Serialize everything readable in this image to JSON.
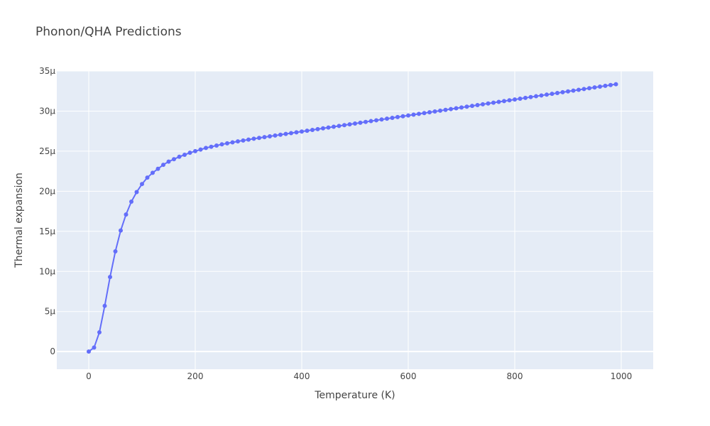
{
  "chart_data": {
    "type": "line",
    "title": "Phonon/QHA Predictions",
    "xlabel": "Temperature (K)",
    "ylabel": "Thermal expansion",
    "xlim": [
      -60,
      1060
    ],
    "ylim": [
      -2.2,
      35
    ],
    "x_ticks": [
      0,
      200,
      400,
      600,
      800,
      1000
    ],
    "x_tick_labels": [
      "0",
      "200",
      "400",
      "600",
      "800",
      "1000"
    ],
    "y_ticks": [
      0,
      5,
      10,
      15,
      20,
      25,
      30,
      35
    ],
    "y_tick_labels": [
      "0",
      "5μ",
      "10μ",
      "15μ",
      "20μ",
      "25μ",
      "30μ",
      "35μ"
    ],
    "y_unit": "μ (1e-6 per K)",
    "grid": true,
    "legend": "none",
    "colors": {
      "line": "#636efa",
      "plot_bg": "#e5ecf6",
      "grid": "#ffffff"
    },
    "series": [
      {
        "x": [
          0,
          10,
          20,
          30,
          40,
          50,
          60,
          70,
          80,
          90,
          100,
          110,
          120,
          130,
          140,
          150,
          160,
          170,
          180,
          190,
          200,
          210,
          220,
          230,
          240,
          250,
          260,
          270,
          280,
          290,
          300,
          310,
          320,
          330,
          340,
          350,
          360,
          370,
          380,
          390,
          400,
          410,
          420,
          430,
          440,
          450,
          460,
          470,
          480,
          490,
          500,
          510,
          520,
          530,
          540,
          550,
          560,
          570,
          580,
          590,
          600,
          610,
          620,
          630,
          640,
          650,
          660,
          670,
          680,
          690,
          700,
          710,
          720,
          730,
          740,
          750,
          760,
          770,
          780,
          790,
          800,
          810,
          820,
          830,
          840,
          850,
          860,
          870,
          880,
          890,
          900,
          910,
          920,
          930,
          940,
          950,
          960,
          970,
          980,
          990
        ],
        "values": [
          0,
          0.5,
          2.4,
          5.7,
          9.3,
          12.5,
          15.1,
          17.1,
          18.7,
          19.9,
          20.9,
          21.7,
          22.3,
          22.8,
          23.3,
          23.7,
          24.0,
          24.3,
          24.55,
          24.8,
          25.0,
          25.2,
          25.4,
          25.55,
          25.7,
          25.85,
          25.98,
          26.1,
          26.22,
          26.33,
          26.44,
          26.55,
          26.65,
          26.75,
          26.85,
          26.95,
          27.05,
          27.15,
          27.25,
          27.35,
          27.45,
          27.55,
          27.65,
          27.75,
          27.85,
          27.95,
          28.05,
          28.15,
          28.25,
          28.35,
          28.45,
          28.55,
          28.65,
          28.75,
          28.85,
          28.95,
          29.05,
          29.15,
          29.25,
          29.35,
          29.45,
          29.55,
          29.65,
          29.75,
          29.85,
          29.95,
          30.05,
          30.15,
          30.25,
          30.35,
          30.45,
          30.55,
          30.65,
          30.75,
          30.85,
          30.95,
          31.05,
          31.15,
          31.25,
          31.35,
          31.45,
          31.55,
          31.65,
          31.75,
          31.85,
          31.95,
          32.05,
          32.15,
          32.25,
          32.35,
          32.45,
          32.55,
          32.65,
          32.75,
          32.85,
          32.95,
          33.05,
          33.15,
          33.25,
          33.35
        ]
      }
    ]
  }
}
